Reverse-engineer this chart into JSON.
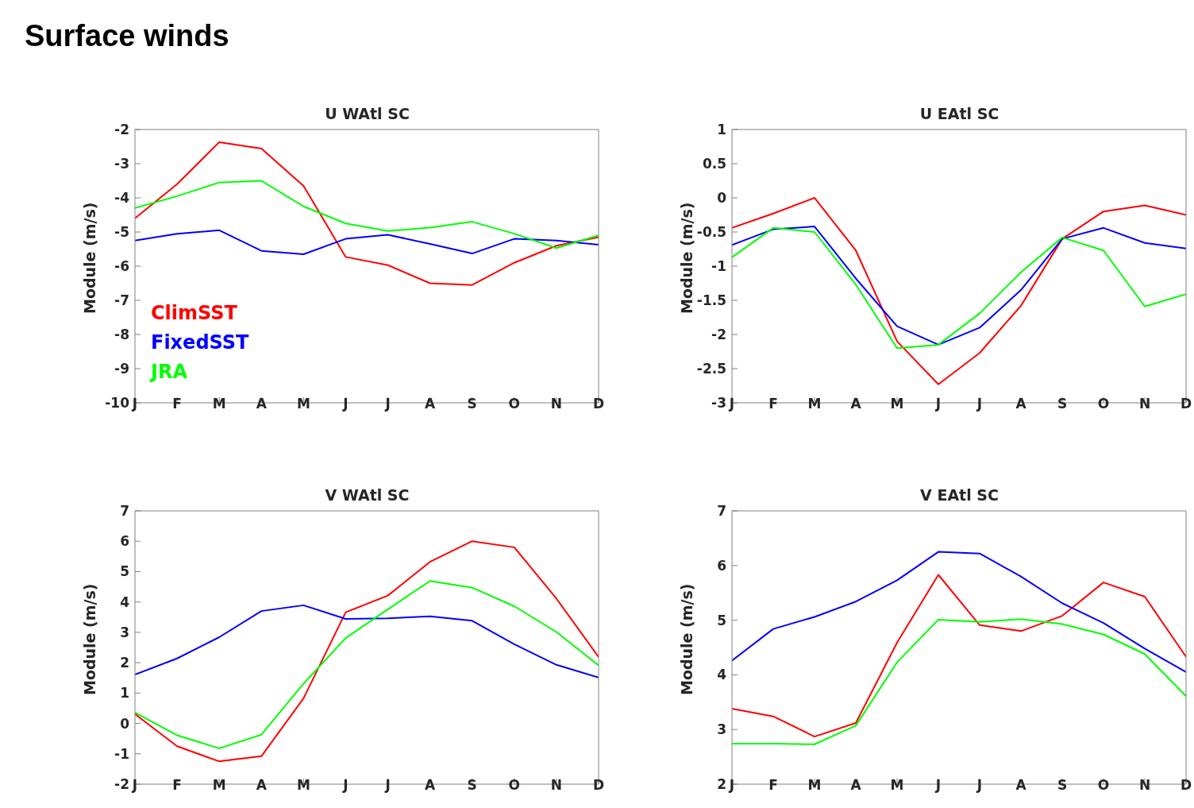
{
  "chart_data": [
    {
      "type": "line",
      "title": "U WAtl SC",
      "ylabel": "Module (m/s)",
      "annotations": [
        "Surface winds"
      ],
      "categories": [
        "J",
        "F",
        "M",
        "A",
        "M",
        "J",
        "J",
        "A",
        "S",
        "O",
        "N",
        "D"
      ],
      "ylim": [
        -10,
        -2
      ],
      "yticks": [
        -10,
        -9,
        -8,
        -7,
        -6,
        -5,
        -4,
        -3,
        -2
      ],
      "grid": false,
      "legend": "bottom left",
      "marker": "none",
      "line_style": "solid",
      "series": [
        {
          "name": "ClimSST",
          "color": "#ff0000",
          "values": [
            -4.6,
            -3.6,
            -2.37,
            -2.56,
            -3.65,
            -5.73,
            -5.97,
            -6.5,
            -6.55,
            -5.9,
            -5.4,
            -5.15
          ]
        },
        {
          "name": "FixedSST",
          "color": "#0000ff",
          "values": [
            -5.25,
            -5.05,
            -4.95,
            -5.55,
            -5.65,
            -5.2,
            -5.08,
            -5.35,
            -5.63,
            -5.2,
            -5.25,
            -5.37
          ]
        },
        {
          "name": "JRA",
          "color": "#00ff00",
          "values": [
            -4.3,
            -3.95,
            -3.55,
            -3.5,
            -4.25,
            -4.75,
            -4.97,
            -4.87,
            -4.7,
            -5.05,
            -5.47,
            -5.1
          ]
        }
      ]
    },
    {
      "type": "line",
      "title": "U EAtl SC",
      "ylabel": "Module (m/s)",
      "categories": [
        "J",
        "F",
        "M",
        "A",
        "M",
        "J",
        "J",
        "A",
        "S",
        "O",
        "N",
        "D"
      ],
      "ylim": [
        -3,
        1
      ],
      "yticks": [
        -3,
        -2.5,
        -2,
        -1.5,
        -1,
        -0.5,
        0,
        0.5,
        1
      ],
      "grid": false,
      "legend": false,
      "marker": "none",
      "line_style": "solid",
      "series": [
        {
          "color": "#ff0000",
          "values": [
            -0.44,
            -0.23,
            0,
            -0.77,
            -2.1,
            -2.73,
            -2.27,
            -1.58,
            -0.6,
            -0.2,
            -0.11,
            -0.25
          ]
        },
        {
          "color": "#0000ff",
          "values": [
            -0.69,
            -0.46,
            -0.42,
            -1.18,
            -1.88,
            -2.15,
            -1.9,
            -1.35,
            -0.6,
            -0.44,
            -0.66,
            -0.74
          ]
        },
        {
          "color": "#00ff00",
          "values": [
            -0.87,
            -0.44,
            -0.5,
            -1.27,
            -2.2,
            -2.15,
            -1.69,
            -1.09,
            -0.58,
            -0.77,
            -1.59,
            -1.41
          ]
        }
      ]
    },
    {
      "type": "line",
      "title": "V WAtl SC",
      "ylabel": "Module (m/s)",
      "categories": [
        "J",
        "F",
        "M",
        "A",
        "M",
        "J",
        "J",
        "A",
        "S",
        "O",
        "N",
        "D"
      ],
      "ylim": [
        -2,
        7
      ],
      "yticks": [
        -2,
        -1,
        0,
        1,
        2,
        3,
        4,
        5,
        6,
        7
      ],
      "grid": false,
      "legend": false,
      "marker": "none",
      "line_style": "solid",
      "series": [
        {
          "color": "#ff0000",
          "values": [
            0.31,
            -0.75,
            -1.25,
            -1.08,
            0.83,
            3.66,
            4.21,
            5.32,
            6.0,
            5.8,
            4.11,
            2.19
          ]
        },
        {
          "color": "#0000ff",
          "values": [
            1.61,
            2.14,
            2.84,
            3.7,
            3.89,
            3.44,
            3.46,
            3.53,
            3.38,
            2.61,
            1.93,
            1.51
          ]
        },
        {
          "color": "#00ff00",
          "values": [
            0.36,
            -0.39,
            -0.82,
            -0.37,
            1.31,
            2.81,
            3.76,
            4.69,
            4.47,
            3.86,
            3.01,
            1.91
          ]
        }
      ]
    },
    {
      "type": "line",
      "title": "V EAtl SC",
      "ylabel": "Module (m/s)",
      "categories": [
        "J",
        "F",
        "M",
        "A",
        "M",
        "J",
        "J",
        "A",
        "S",
        "O",
        "N",
        "D"
      ],
      "ylim": [
        2,
        7
      ],
      "yticks": [
        2,
        3,
        4,
        5,
        6,
        7
      ],
      "grid": false,
      "legend": false,
      "marker": "none",
      "line_style": "solid",
      "series": [
        {
          "color": "#ff0000",
          "values": [
            3.38,
            3.24,
            2.87,
            3.12,
            4.59,
            5.83,
            4.91,
            4.8,
            5.08,
            5.69,
            5.43,
            4.33
          ]
        },
        {
          "color": "#0000ff",
          "values": [
            4.26,
            4.84,
            5.06,
            5.34,
            5.73,
            6.25,
            6.22,
            5.8,
            5.31,
            4.95,
            4.48,
            4.05
          ]
        },
        {
          "color": "#00ff00",
          "values": [
            2.74,
            2.74,
            2.73,
            3.07,
            4.23,
            5.01,
            4.97,
            5.02,
            4.93,
            4.74,
            4.38,
            3.61
          ]
        }
      ]
    }
  ]
}
